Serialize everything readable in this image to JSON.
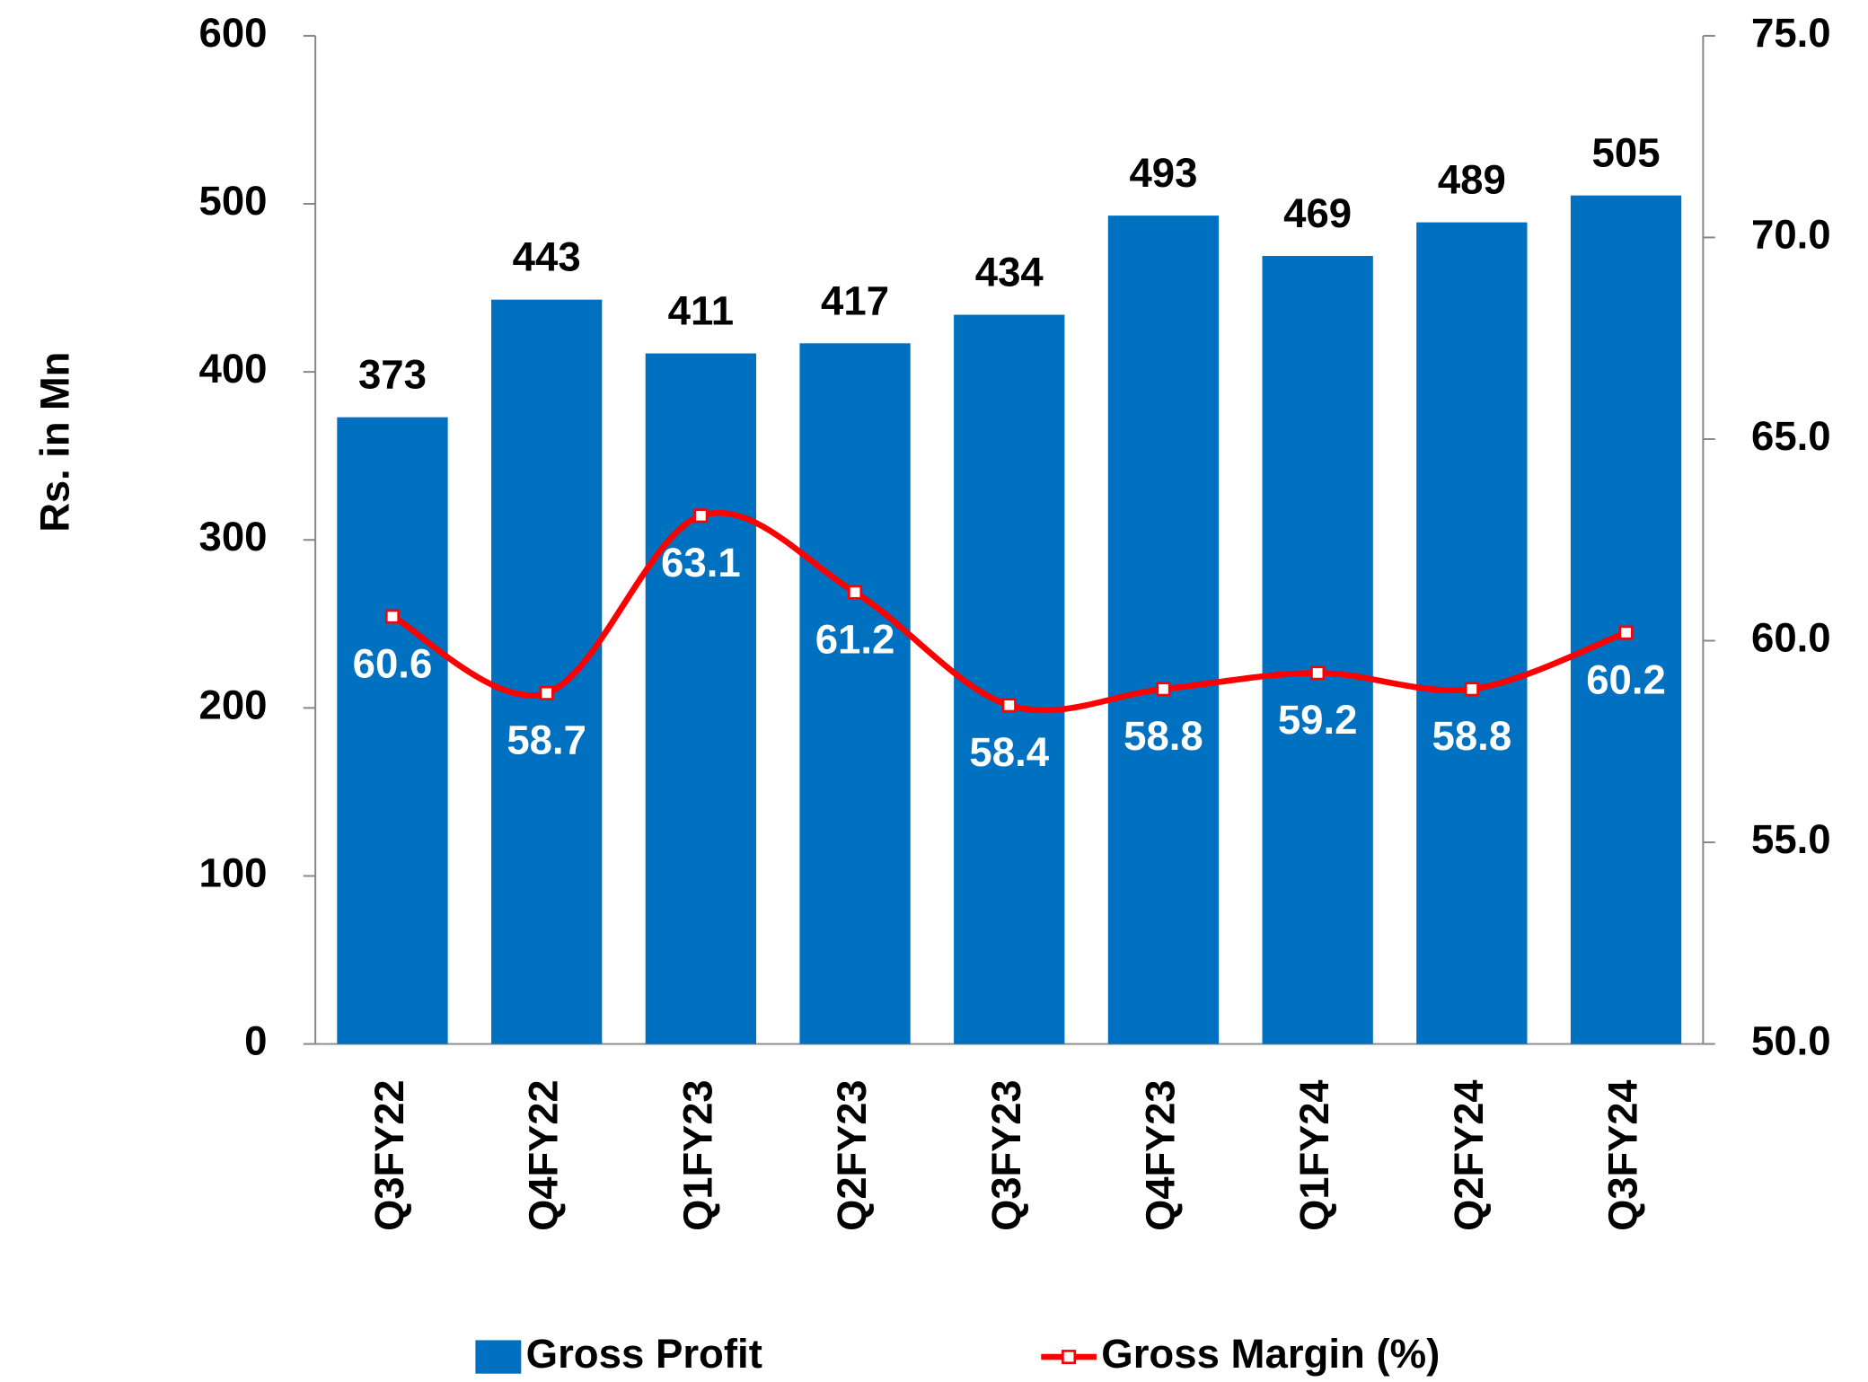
{
  "chart_data": {
    "type": "bar-line",
    "y_label": "Rs. in Mn",
    "categories": [
      "Q3FY22",
      "Q4FY22",
      "Q1FY23",
      "Q2FY23",
      "Q3FY23",
      "Q4FY23",
      "Q1FY24",
      "Q2FY24",
      "Q3FY24"
    ],
    "series": [
      {
        "name": "Gross Profit",
        "type": "bar",
        "color": "#0070c0",
        "values": [
          373,
          443,
          411,
          417,
          434,
          493,
          469,
          489,
          505
        ]
      },
      {
        "name": "Gross Margin (%)",
        "type": "line",
        "axis": "y2",
        "color": "#ff0000",
        "values": [
          60.6,
          58.7,
          63.1,
          61.2,
          58.4,
          58.8,
          59.2,
          58.8,
          60.2
        ]
      }
    ],
    "ylim": [
      0,
      600
    ],
    "yticks": [
      0,
      100,
      200,
      300,
      400,
      500,
      600
    ],
    "y2lim": [
      50,
      75
    ],
    "y2ticks": [
      {
        "value": 50,
        "label": "50.0"
      },
      {
        "value": 55,
        "label": "55.0"
      },
      {
        "value": 60,
        "label": "60.0"
      },
      {
        "value": 65,
        "label": "65.0"
      },
      {
        "value": 70,
        "label": "70.0"
      },
      {
        "value": 75,
        "label": "75.0"
      }
    ],
    "legend": "bottom"
  }
}
